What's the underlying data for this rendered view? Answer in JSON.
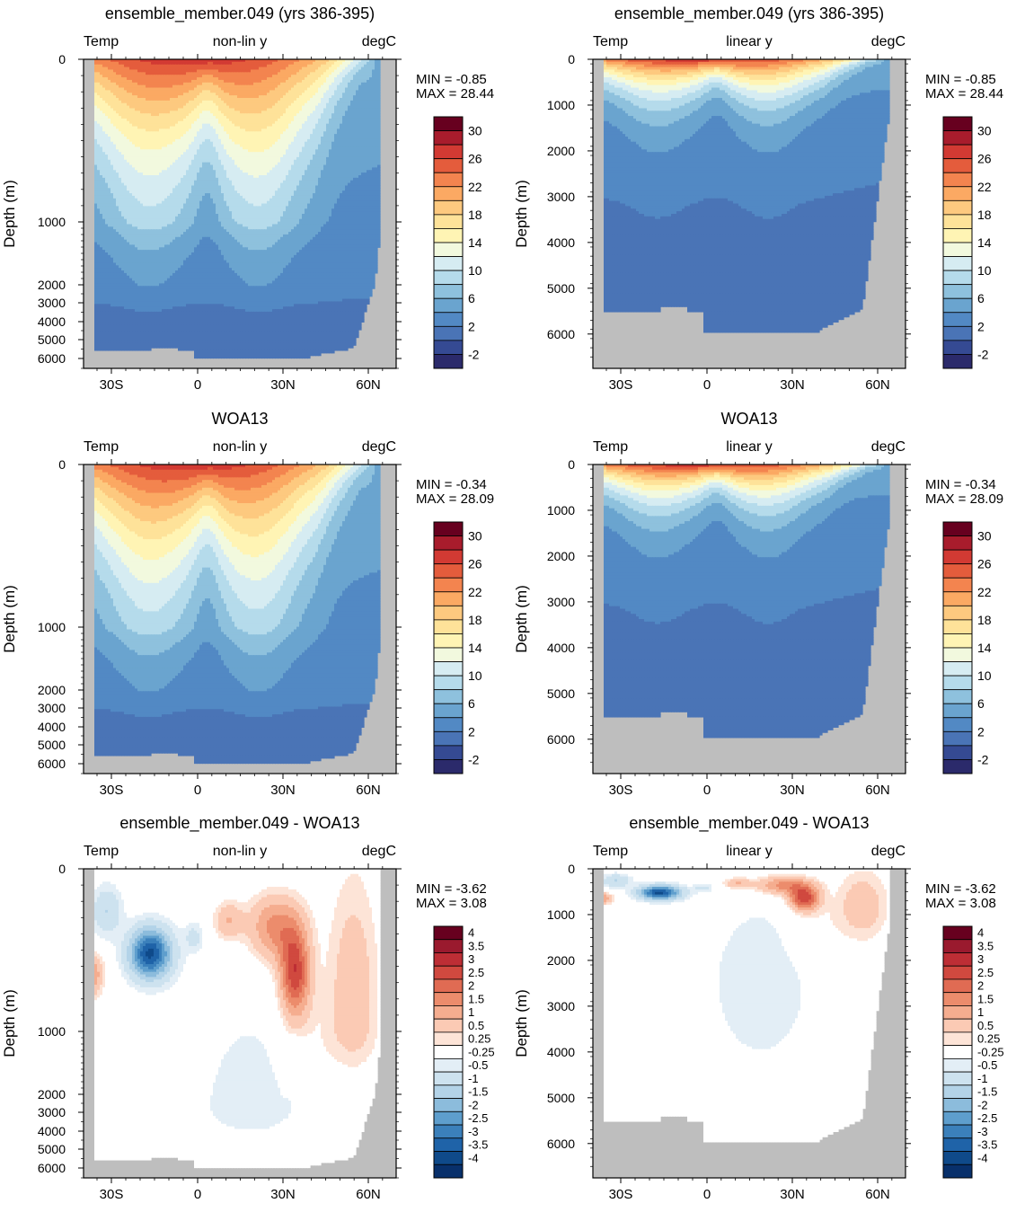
{
  "figure": {
    "common": {
      "left_label": "Temp",
      "right_label": "degC",
      "ylabel": "Depth (m)",
      "xticks": [
        "30S",
        "0",
        "30N",
        "60N"
      ],
      "land_color": "#bebebe"
    },
    "colorbars": {
      "temperature": {
        "labels": [
          "30",
          "26",
          "22",
          "18",
          "14",
          "10",
          "6",
          "2",
          "-2"
        ],
        "colors": [
          "#67001f",
          "#a81c2c",
          "#d23a33",
          "#e45c3c",
          "#f3844f",
          "#fba963",
          "#fdc97f",
          "#fee299",
          "#fff4b4",
          "#f2f9de",
          "#d6ecf2",
          "#b5dbeb",
          "#8ec1dd",
          "#6aa4cf",
          "#5289c4",
          "#4a74b6",
          "#354a93",
          "#2b2a6b"
        ]
      },
      "difference": {
        "labels": [
          "4",
          "3.5",
          "3",
          "2.5",
          "2",
          "1.5",
          "1",
          "0.5",
          "0.25",
          "-0.25",
          "-0.5",
          "-1",
          "-1.5",
          "-2",
          "-2.5",
          "-3",
          "-3.5",
          "-4"
        ],
        "colors": [
          "#67001f",
          "#9a1a2e",
          "#bd2e35",
          "#d0493f",
          "#e06b53",
          "#ec8c6c",
          "#f5ad8f",
          "#fbcab4",
          "#fde4d7",
          "#ffffff",
          "#e3eef6",
          "#cde2ef",
          "#b3d3e8",
          "#8cbcdc",
          "#5e9ecd",
          "#3b80bb",
          "#1f63a8",
          "#0f4a8a",
          "#08306b"
        ]
      }
    },
    "panels": [
      {
        "title": "ensemble_member.049 (yrs 386-395)",
        "center_label": "non-lin y",
        "min_text": "MIN =  -0.85",
        "max_text": "MAX =  28.44",
        "colorbar": "temperature",
        "yticks": [
          "0",
          "1000",
          "2000",
          "3000",
          "4000",
          "5000",
          "6000"
        ],
        "scale": "nonlinear",
        "field": "model"
      },
      {
        "title": "ensemble_member.049 (yrs 386-395)",
        "center_label": "linear y",
        "min_text": "MIN =  -0.85",
        "max_text": "MAX =  28.44",
        "colorbar": "temperature",
        "yticks": [
          "0",
          "1000",
          "2000",
          "3000",
          "4000",
          "5000",
          "6000"
        ],
        "scale": "linear",
        "field": "model"
      },
      {
        "title": "WOA13",
        "center_label": "non-lin y",
        "min_text": "MIN =  -0.34",
        "max_text": "MAX =  28.09",
        "colorbar": "temperature",
        "yticks": [
          "0",
          "1000",
          "2000",
          "3000",
          "4000",
          "5000",
          "6000"
        ],
        "scale": "nonlinear",
        "field": "obs"
      },
      {
        "title": "WOA13",
        "center_label": "linear y",
        "min_text": "MIN =  -0.34",
        "max_text": "MAX =  28.09",
        "colorbar": "temperature",
        "yticks": [
          "0",
          "1000",
          "2000",
          "3000",
          "4000",
          "5000",
          "6000"
        ],
        "scale": "linear",
        "field": "obs"
      },
      {
        "title": "ensemble_member.049 - WOA13",
        "center_label": "non-lin y",
        "min_text": "MIN =  -3.62",
        "max_text": "MAX =   3.08",
        "colorbar": "difference",
        "yticks": [
          "0",
          "1000",
          "2000",
          "3000",
          "4000",
          "5000",
          "6000"
        ],
        "scale": "nonlinear",
        "field": "diff"
      },
      {
        "title": "ensemble_member.049 - WOA13",
        "center_label": "linear y",
        "min_text": "MIN =  -3.62",
        "max_text": "MAX =   3.08",
        "colorbar": "difference",
        "yticks": [
          "0",
          "1000",
          "2000",
          "3000",
          "4000",
          "5000",
          "6000"
        ],
        "scale": "linear",
        "field": "diff"
      }
    ]
  },
  "chart_data": [
    {
      "type": "heatmap",
      "title": "ensemble_member.049 (yrs 386-395)",
      "xlabel": "",
      "ylabel": "Depth (m)",
      "variable": "Temp",
      "units": "degC",
      "y_scale": "non-lin y",
      "x_ticks": [
        "30S",
        "0",
        "30N",
        "60N"
      ],
      "xlim": [
        -38,
        70
      ],
      "ylim": [
        6500,
        0
      ],
      "min": -0.85,
      "max": 28.44,
      "levels": [
        -2,
        0,
        2,
        4,
        6,
        8,
        10,
        12,
        14,
        16,
        18,
        20,
        22,
        24,
        26,
        28,
        30
      ],
      "depth_profile_equator": [
        [
          0,
          28
        ],
        [
          100,
          26
        ],
        [
          200,
          20
        ],
        [
          300,
          14
        ],
        [
          500,
          9
        ],
        [
          800,
          6
        ],
        [
          1000,
          4.5
        ],
        [
          2000,
          3
        ],
        [
          4000,
          1.5
        ],
        [
          5500,
          1
        ]
      ]
    },
    {
      "type": "heatmap",
      "title": "ensemble_member.049 (yrs 386-395)",
      "xlabel": "",
      "ylabel": "Depth (m)",
      "variable": "Temp",
      "units": "degC",
      "y_scale": "linear y",
      "x_ticks": [
        "30S",
        "0",
        "30N",
        "60N"
      ],
      "xlim": [
        -38,
        70
      ],
      "ylim": [
        6800,
        0
      ],
      "min": -0.85,
      "max": 28.44,
      "levels": [
        -2,
        0,
        2,
        4,
        6,
        8,
        10,
        12,
        14,
        16,
        18,
        20,
        22,
        24,
        26,
        28,
        30
      ]
    },
    {
      "type": "heatmap",
      "title": "WOA13",
      "xlabel": "",
      "ylabel": "Depth (m)",
      "variable": "Temp",
      "units": "degC",
      "y_scale": "non-lin y",
      "x_ticks": [
        "30S",
        "0",
        "30N",
        "60N"
      ],
      "xlim": [
        -38,
        70
      ],
      "ylim": [
        6500,
        0
      ],
      "min": -0.34,
      "max": 28.09,
      "levels": [
        -2,
        0,
        2,
        4,
        6,
        8,
        10,
        12,
        14,
        16,
        18,
        20,
        22,
        24,
        26,
        28,
        30
      ]
    },
    {
      "type": "heatmap",
      "title": "WOA13",
      "xlabel": "",
      "ylabel": "Depth (m)",
      "variable": "Temp",
      "units": "degC",
      "y_scale": "linear y",
      "x_ticks": [
        "30S",
        "0",
        "30N",
        "60N"
      ],
      "xlim": [
        -38,
        70
      ],
      "ylim": [
        6800,
        0
      ],
      "min": -0.34,
      "max": 28.09,
      "levels": [
        -2,
        0,
        2,
        4,
        6,
        8,
        10,
        12,
        14,
        16,
        18,
        20,
        22,
        24,
        26,
        28,
        30
      ]
    },
    {
      "type": "heatmap",
      "title": "ensemble_member.049 - WOA13",
      "xlabel": "",
      "ylabel": "Depth (m)",
      "variable": "Temp",
      "units": "degC",
      "y_scale": "non-lin y",
      "x_ticks": [
        "30S",
        "0",
        "30N",
        "60N"
      ],
      "xlim": [
        -38,
        70
      ],
      "ylim": [
        6500,
        0
      ],
      "min": -3.62,
      "max": 3.08,
      "levels": [
        -4,
        -3.5,
        -3,
        -2.5,
        -2,
        -1.5,
        -1,
        -0.5,
        -0.25,
        0.25,
        0.5,
        1,
        1.5,
        2,
        2.5,
        3,
        3.5,
        4
      ]
    },
    {
      "type": "heatmap",
      "title": "ensemble_member.049 - WOA13",
      "xlabel": "",
      "ylabel": "Depth (m)",
      "variable": "Temp",
      "units": "degC",
      "y_scale": "linear y",
      "x_ticks": [
        "30S",
        "0",
        "30N",
        "60N"
      ],
      "xlim": [
        -38,
        70
      ],
      "ylim": [
        6800,
        0
      ],
      "min": -3.62,
      "max": 3.08,
      "levels": [
        -4,
        -3.5,
        -3,
        -2.5,
        -2,
        -1.5,
        -1,
        -0.5,
        -0.25,
        0.25,
        0.5,
        1,
        1.5,
        2,
        2.5,
        3,
        3.5,
        4
      ]
    }
  ]
}
